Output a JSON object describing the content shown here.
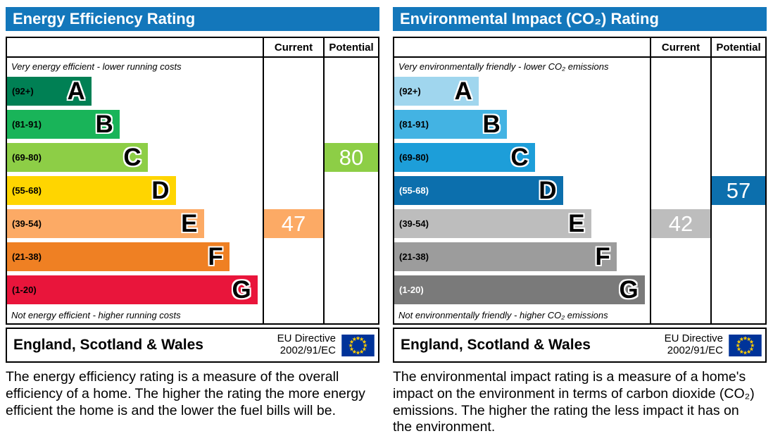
{
  "colors": {
    "header_bar": "#1377bb",
    "flag_blue": "#003399",
    "flag_star": "#ffcc00"
  },
  "chart_data": [
    {
      "id": "energy-efficiency",
      "type": "bar",
      "title": "Energy Efficiency Rating",
      "columns": [
        "Current",
        "Potential"
      ],
      "top_note": "Very energy efficient - lower running costs",
      "bottom_note": "Not energy efficient - higher running costs",
      "bands": [
        {
          "letter": "A",
          "range": "(92+)",
          "color": "#008054",
          "width_pct": 33
        },
        {
          "letter": "B",
          "range": "(81-91)",
          "color": "#19b459",
          "width_pct": 44
        },
        {
          "letter": "C",
          "range": "(69-80)",
          "color": "#8dce46",
          "width_pct": 55
        },
        {
          "letter": "D",
          "range": "(55-68)",
          "color": "#ffd500",
          "width_pct": 66
        },
        {
          "letter": "E",
          "range": "(39-54)",
          "color": "#fcaa65",
          "width_pct": 77
        },
        {
          "letter": "F",
          "range": "(21-38)",
          "color": "#ef8023",
          "width_pct": 87
        },
        {
          "letter": "G",
          "range": "(1-20)",
          "color": "#e9153b",
          "width_pct": 98
        }
      ],
      "current": {
        "value": 47,
        "band": "E",
        "color": "#fcaa65"
      },
      "potential": {
        "value": 80,
        "band": "C",
        "color": "#8dce46"
      },
      "footer": {
        "region": "England, Scotland & Wales",
        "directive": [
          "EU Directive",
          "2002/91/EC"
        ]
      },
      "caption": "The energy efficiency rating is a measure of the overall efficiency of a home. The higher the rating the more energy efficient the home is and the lower the fuel bills will be."
    },
    {
      "id": "environmental-impact",
      "type": "bar",
      "title": "Environmental Impact (CO₂) Rating",
      "columns": [
        "Current",
        "Potential"
      ],
      "top_note": "Very environmentally friendly - lower CO₂ emissions",
      "bottom_note": "Not environmentally friendly - higher CO₂ emissions",
      "bands": [
        {
          "letter": "A",
          "range": "(92+)",
          "color": "#a0d6ee",
          "width_pct": 33
        },
        {
          "letter": "B",
          "range": "(81-91)",
          "color": "#43b3e3",
          "width_pct": 44
        },
        {
          "letter": "C",
          "range": "(69-80)",
          "color": "#1d9ed9",
          "width_pct": 55
        },
        {
          "letter": "D",
          "range": "(55-68)",
          "color": "#0c6fad",
          "range_text": "#ffffff",
          "width_pct": 66
        },
        {
          "letter": "E",
          "range": "(39-54)",
          "color": "#bdbdbd",
          "width_pct": 77
        },
        {
          "letter": "F",
          "range": "(21-38)",
          "color": "#9c9c9c",
          "width_pct": 87
        },
        {
          "letter": "G",
          "range": "(1-20)",
          "color": "#7a7a7a",
          "range_text": "#ffffff",
          "width_pct": 98
        }
      ],
      "current": {
        "value": 42,
        "band": "E",
        "color": "#bdbdbd"
      },
      "potential": {
        "value": 57,
        "band": "D",
        "color": "#0c6fad"
      },
      "footer": {
        "region": "England, Scotland & Wales",
        "directive": [
          "EU Directive",
          "2002/91/EC"
        ]
      },
      "caption": "The environmental impact rating is a measure of a home's impact on the environment in terms of carbon dioxide (CO₂) emissions. The higher the rating the less impact it has on the environment."
    }
  ]
}
